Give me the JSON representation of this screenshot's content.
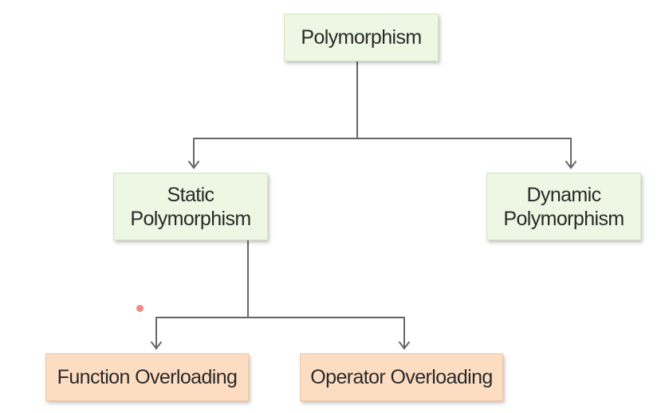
{
  "diagram": {
    "nodes": {
      "root": "Polymorphism",
      "static": "Static\nPolymorphism",
      "dynamic": "Dynamic\nPolymorphism",
      "function_overloading": "Function Overloading",
      "operator_overloading": "Operator Overloading"
    },
    "colors": {
      "category_fill": "#eef7e3",
      "leaf_fill": "#fdddc2",
      "connector": "#666666",
      "pointer_dot": "#ef8a8a"
    }
  }
}
